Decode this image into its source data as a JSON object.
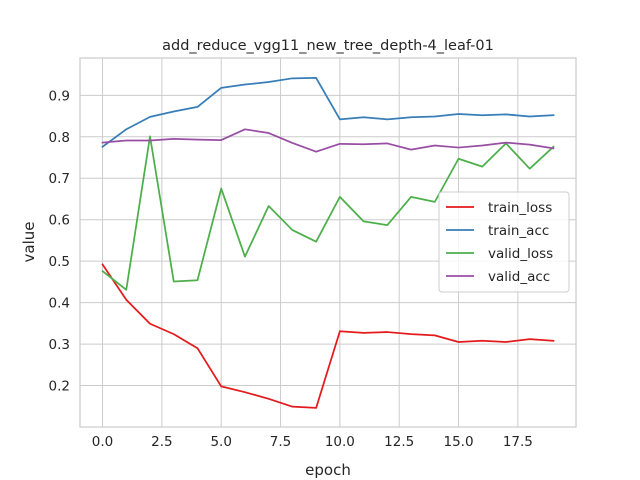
{
  "chart_data": {
    "type": "line",
    "title": "add_reduce_vgg11_new_tree_depth-4_leaf-01",
    "xlabel": "epoch",
    "ylabel": "value",
    "xlim": [
      -0.95,
      19.95
    ],
    "ylim": [
      0.1,
      0.99
    ],
    "xticks": [
      "0.0",
      "2.5",
      "5.0",
      "7.5",
      "10.0",
      "12.5",
      "15.0",
      "17.5"
    ],
    "yticks": [
      "0.2",
      "0.3",
      "0.4",
      "0.5",
      "0.6",
      "0.7",
      "0.8",
      "0.9"
    ],
    "grid": true,
    "legend_position": "center-right",
    "x": [
      0,
      1,
      2,
      3,
      4,
      5,
      6,
      7,
      8,
      9,
      10,
      11,
      12,
      13,
      14,
      15,
      16,
      17,
      18,
      19
    ],
    "series": [
      {
        "name": "train_loss",
        "color": "#e41a1c",
        "values": [
          0.492,
          0.407,
          0.349,
          0.324,
          0.29,
          0.198,
          0.184,
          0.168,
          0.149,
          0.146,
          0.331,
          0.327,
          0.329,
          0.324,
          0.321,
          0.305,
          0.308,
          0.305,
          0.312,
          0.308
        ]
      },
      {
        "name": "train_acc",
        "color": "#377eb8",
        "values": [
          0.776,
          0.818,
          0.848,
          0.861,
          0.872,
          0.918,
          0.926,
          0.932,
          0.941,
          0.942,
          0.842,
          0.847,
          0.842,
          0.847,
          0.849,
          0.855,
          0.852,
          0.854,
          0.849,
          0.852
        ]
      },
      {
        "name": "valid_loss",
        "color": "#4daf4a",
        "values": [
          0.476,
          0.431,
          0.801,
          0.451,
          0.454,
          0.675,
          0.511,
          0.633,
          0.575,
          0.547,
          0.655,
          0.596,
          0.587,
          0.655,
          0.643,
          0.747,
          0.728,
          0.784,
          0.723,
          0.776
        ]
      },
      {
        "name": "valid_acc",
        "color": "#984ea3",
        "values": [
          0.786,
          0.791,
          0.791,
          0.795,
          0.793,
          0.792,
          0.818,
          0.809,
          0.785,
          0.764,
          0.783,
          0.782,
          0.784,
          0.769,
          0.779,
          0.774,
          0.779,
          0.786,
          0.781,
          0.772
        ]
      }
    ]
  }
}
